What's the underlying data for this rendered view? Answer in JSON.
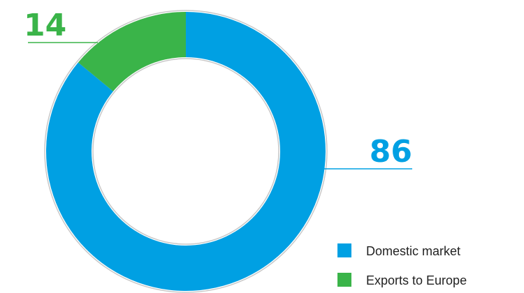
{
  "chart_data": {
    "type": "pie",
    "categories": [
      "Domestic market",
      "Exports to Europe"
    ],
    "values": [
      86,
      14
    ],
    "data_labels": [
      "86",
      "14"
    ],
    "colors": [
      "#00a0e3",
      "#3ab449"
    ],
    "donut": true,
    "start": "top",
    "legend": "bottom-right"
  }
}
